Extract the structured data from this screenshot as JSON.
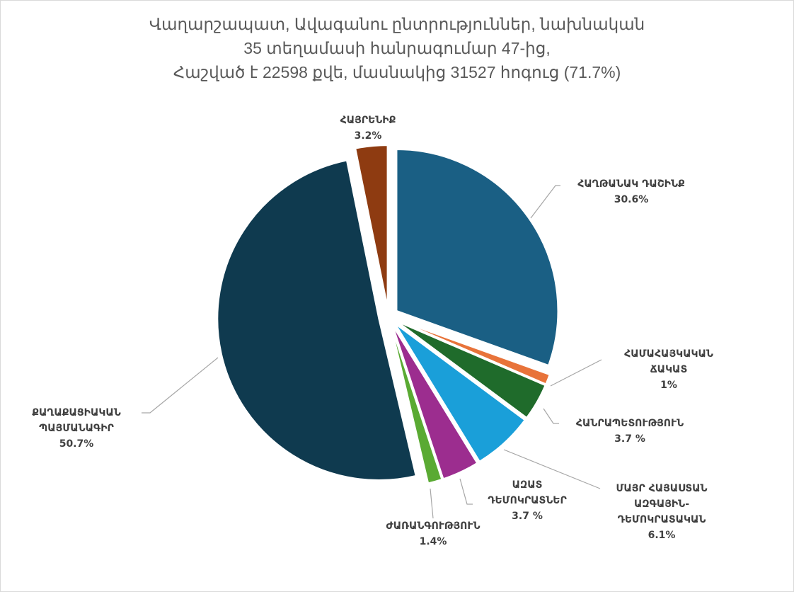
{
  "chart_data": {
    "type": "pie",
    "title": [
      "Վաղարշապատ, Ավագանու ընտրություններ, նախնական",
      "35 տեղամասի հանրագումար 47-ից,",
      "Հաշված է 22598 քվե, մասնակից 31527 հոգուց (71.7%)"
    ],
    "categories": [
      [
        "ՀԱՂԹԱՆԱԿ ԴԱՇԻՆՔ"
      ],
      [
        "ՀԱՄԱՀԱՅԿԱԿԱՆ",
        "ՃԱԿԱՏ"
      ],
      [
        "ՀԱՆՐԱՊԵՏՈՒԹՅՈՒՆ"
      ],
      [
        "ՄԱՅՐ ՀԱՅԱՍՏԱՆ",
        "ԱԶԳԱՅԻՆ-",
        "ԴԵՄՈԿՐԱՏԱԿԱՆ"
      ],
      [
        "ԱԶԱՏ",
        "ԴԵՄՈԿՐԱՏՆԵՐ"
      ],
      [
        "ԺԱՌԱՆԳՈՒԹՅՈՒՆ"
      ],
      [
        "ՔԱՂԱՔԱՑԻԱԿԱՆ",
        "ՊԱՅՄԱՆԱԳԻՐ"
      ],
      [
        "ՀԱՅՐԵՆԻՔ"
      ]
    ],
    "values": [
      30.6,
      1,
      3.7,
      6.1,
      3.7,
      1.4,
      50.7,
      3.2
    ],
    "value_labels": [
      "30.6%",
      "1%",
      "3.7 %",
      "6.1%",
      "3.7 %",
      "1.4%",
      "50.7%",
      "3.2%"
    ],
    "colors": [
      "#1a5f84",
      "#e8733a",
      "#1f6b2b",
      "#1a9fd9",
      "#9c2d8f",
      "#5aaa33",
      "#0f3a4f",
      "#8e3b11"
    ]
  }
}
